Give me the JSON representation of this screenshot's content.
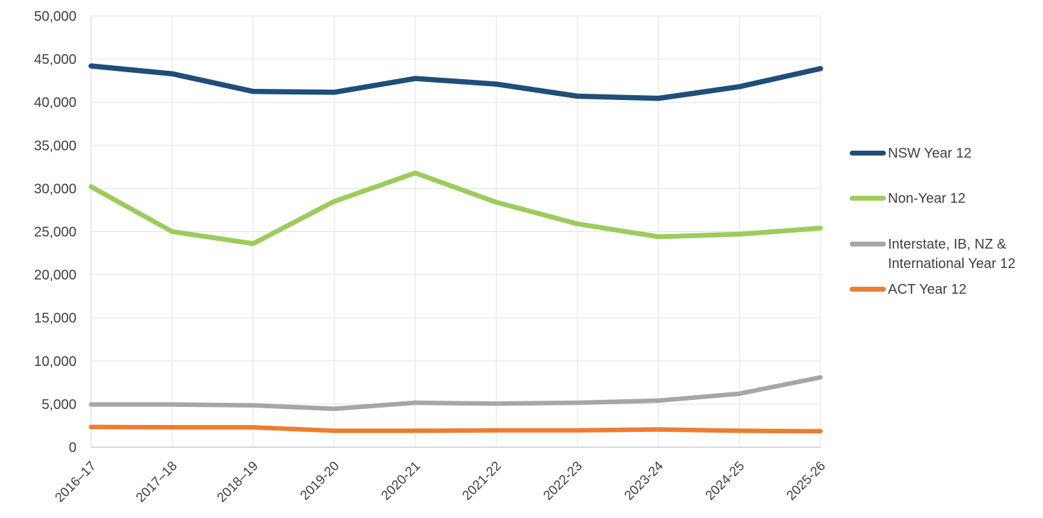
{
  "chart_data": {
    "type": "line",
    "title": "",
    "xlabel": "",
    "ylabel": "",
    "grid": true,
    "legend_position": "right",
    "ylim": [
      0,
      50000
    ],
    "ytick_step": 5000,
    "ytick_labels": [
      "0",
      "5,000",
      "10,000",
      "15,000",
      "20,000",
      "25,000",
      "30,000",
      "35,000",
      "40,000",
      "45,000",
      "50,000"
    ],
    "categories": [
      "2016–17",
      "2017–18",
      "2018–19",
      "2019-20",
      "2020-21",
      "2021-22",
      "2022-23",
      "2023-24",
      "2024-25",
      "2025-26"
    ],
    "series": [
      {
        "name": "NSW Year 12",
        "color": "#1F4E79",
        "values": [
          44200,
          43300,
          41250,
          41150,
          42750,
          42100,
          40700,
          40450,
          41800,
          43900
        ]
      },
      {
        "name": "Non-Year 12",
        "color": "#9DCB5D",
        "values": [
          30200,
          25000,
          23600,
          28500,
          31800,
          28400,
          25900,
          24400,
          24700,
          25400
        ]
      },
      {
        "name": "Interstate, IB, NZ & International Year 12",
        "color": "#A6A6A6",
        "values": [
          4950,
          4950,
          4850,
          4450,
          5150,
          5050,
          5150,
          5400,
          6200,
          8100
        ]
      },
      {
        "name": "ACT Year 12",
        "color": "#ED7D31",
        "values": [
          2350,
          2300,
          2300,
          1900,
          1900,
          1950,
          1950,
          2050,
          1900,
          1850
        ]
      }
    ],
    "axis_colors": {
      "gridline": "#E2E2E2",
      "axis_line": "#C9C9C9",
      "tick_text": "#404040"
    }
  }
}
